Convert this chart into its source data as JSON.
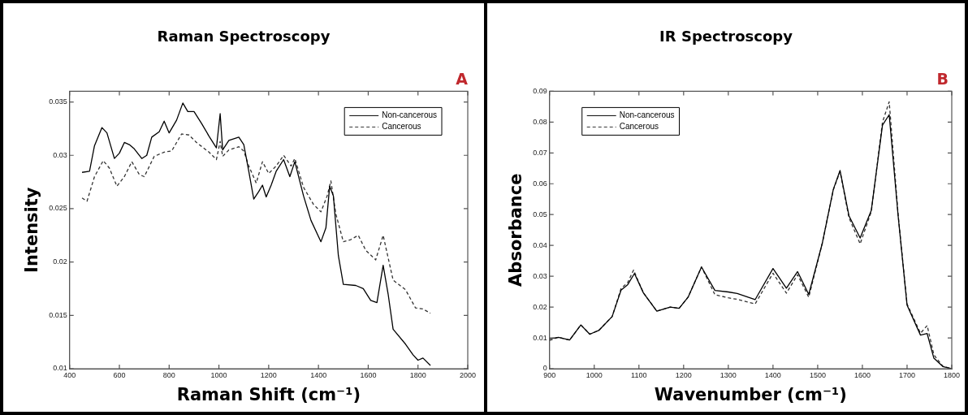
{
  "chart_data": [
    {
      "type": "line",
      "title": "Raman Spectroscopy",
      "xlabel": "Raman Shift (cm⁻¹)",
      "ylabel": "Intensity",
      "annotations": [
        "A"
      ],
      "xlim": [
        400,
        2000
      ],
      "xticks": [
        400,
        600,
        800,
        1000,
        1200,
        1400,
        1600,
        1800,
        2000
      ],
      "ylim": [
        0.01,
        0.036
      ],
      "yticks": [
        0.01,
        0.015,
        0.02,
        0.025,
        0.03,
        0.035
      ],
      "grid": false,
      "legend": "top right",
      "marker": "none",
      "series": [
        {
          "name": "Non-cancerous",
          "color": "#000000",
          "line_style": "solid",
          "x": [
            450,
            480,
            500,
            530,
            550,
            580,
            600,
            620,
            640,
            660,
            690,
            710,
            730,
            760,
            780,
            800,
            830,
            855,
            875,
            900,
            930,
            960,
            990,
            1005,
            1015,
            1040,
            1080,
            1100,
            1120,
            1140,
            1160,
            1175,
            1190,
            1210,
            1230,
            1260,
            1285,
            1305,
            1340,
            1370,
            1410,
            1430,
            1445,
            1460,
            1480,
            1500,
            1550,
            1580,
            1610,
            1635,
            1660,
            1680,
            1700,
            1750,
            1780,
            1800,
            1820,
            1850
          ],
          "values": [
            0.0284,
            0.0285,
            0.0309,
            0.0326,
            0.0321,
            0.0297,
            0.0302,
            0.0312,
            0.031,
            0.0306,
            0.0297,
            0.03,
            0.0317,
            0.0322,
            0.0332,
            0.0321,
            0.0333,
            0.0349,
            0.0341,
            0.0341,
            0.033,
            0.0318,
            0.0307,
            0.0339,
            0.0305,
            0.0314,
            0.0317,
            0.031,
            0.0285,
            0.0259,
            0.0266,
            0.0272,
            0.0261,
            0.0272,
            0.0285,
            0.0296,
            0.028,
            0.0294,
            0.0262,
            0.0239,
            0.0219,
            0.0232,
            0.0271,
            0.0262,
            0.0206,
            0.0179,
            0.0178,
            0.0175,
            0.0164,
            0.0162,
            0.0197,
            0.017,
            0.0137,
            0.0123,
            0.0113,
            0.0108,
            0.011,
            0.0103
          ]
        },
        {
          "name": "Cancerous",
          "color": "#333333",
          "line_style": "dashed",
          "x": [
            450,
            470,
            500,
            535,
            560,
            590,
            620,
            650,
            680,
            700,
            740,
            780,
            810,
            850,
            880,
            910,
            960,
            990,
            1005,
            1015,
            1040,
            1080,
            1100,
            1120,
            1150,
            1175,
            1200,
            1230,
            1260,
            1290,
            1305,
            1340,
            1380,
            1410,
            1435,
            1450,
            1470,
            1500,
            1530,
            1560,
            1590,
            1630,
            1660,
            1700,
            1750,
            1790,
            1820,
            1850
          ],
          "values": [
            0.026,
            0.0257,
            0.028,
            0.0295,
            0.0288,
            0.0271,
            0.028,
            0.0294,
            0.0282,
            0.028,
            0.0299,
            0.0303,
            0.0304,
            0.032,
            0.0319,
            0.0312,
            0.0303,
            0.0296,
            0.0313,
            0.0299,
            0.0305,
            0.0308,
            0.0304,
            0.029,
            0.0274,
            0.0294,
            0.0283,
            0.029,
            0.03,
            0.029,
            0.0297,
            0.027,
            0.0254,
            0.0247,
            0.0262,
            0.0276,
            0.0245,
            0.0219,
            0.0221,
            0.0225,
            0.0211,
            0.0202,
            0.0225,
            0.0183,
            0.0174,
            0.0157,
            0.0156,
            0.0152
          ]
        }
      ]
    },
    {
      "type": "line",
      "title": "IR Spectroscopy",
      "xlabel": "Wavenumber (cm⁻¹)",
      "ylabel": "Absorbance",
      "annotations": [
        "B"
      ],
      "xlim": [
        900,
        1800
      ],
      "xticks": [
        900,
        1000,
        1100,
        1200,
        1300,
        1400,
        1500,
        1600,
        1700,
        1800
      ],
      "ylim": [
        0,
        0.09
      ],
      "yticks": [
        0,
        0.01,
        0.02,
        0.03,
        0.04,
        0.05,
        0.06,
        0.07,
        0.08,
        0.09
      ],
      "grid": false,
      "legend": "top left",
      "marker": "none",
      "series": [
        {
          "name": "Non-cancerous",
          "color": "#000000",
          "line_style": "solid",
          "x": [
            900,
            920,
            945,
            970,
            990,
            1010,
            1040,
            1060,
            1075,
            1090,
            1110,
            1140,
            1170,
            1190,
            1210,
            1240,
            1270,
            1300,
            1320,
            1360,
            1400,
            1430,
            1455,
            1480,
            1510,
            1535,
            1550,
            1570,
            1595,
            1620,
            1645,
            1660,
            1680,
            1700,
            1730,
            1745,
            1760,
            1780,
            1800
          ],
          "values": [
            0.0097,
            0.0102,
            0.0093,
            0.0142,
            0.0112,
            0.0124,
            0.0169,
            0.0255,
            0.0273,
            0.0309,
            0.0246,
            0.0187,
            0.02,
            0.0196,
            0.0232,
            0.033,
            0.0254,
            0.0249,
            0.0244,
            0.0224,
            0.0325,
            0.0261,
            0.0315,
            0.0241,
            0.0405,
            0.0582,
            0.0643,
            0.0496,
            0.0424,
            0.0514,
            0.079,
            0.0824,
            0.0496,
            0.0206,
            0.0109,
            0.0114,
            0.0034,
            0.0007,
            0
          ]
        },
        {
          "name": "Cancerous",
          "color": "#333333",
          "line_style": "dashed",
          "x": [
            900,
            920,
            945,
            970,
            990,
            1010,
            1040,
            1060,
            1075,
            1088,
            1110,
            1140,
            1170,
            1190,
            1210,
            1240,
            1270,
            1300,
            1320,
            1360,
            1400,
            1430,
            1455,
            1480,
            1510,
            1535,
            1550,
            1570,
            1595,
            1620,
            1645,
            1660,
            1680,
            1700,
            1730,
            1745,
            1760,
            1780,
            1800
          ],
          "values": [
            0.0092,
            0.0102,
            0.0093,
            0.0142,
            0.0112,
            0.0124,
            0.0169,
            0.026,
            0.028,
            0.032,
            0.0246,
            0.0187,
            0.02,
            0.0196,
            0.0232,
            0.033,
            0.024,
            0.023,
            0.0225,
            0.021,
            0.031,
            0.0245,
            0.0305,
            0.0232,
            0.0405,
            0.058,
            0.064,
            0.049,
            0.0405,
            0.051,
            0.08,
            0.0866,
            0.05,
            0.021,
            0.0115,
            0.014,
            0.0045,
            0.0008,
            0
          ]
        }
      ]
    }
  ]
}
